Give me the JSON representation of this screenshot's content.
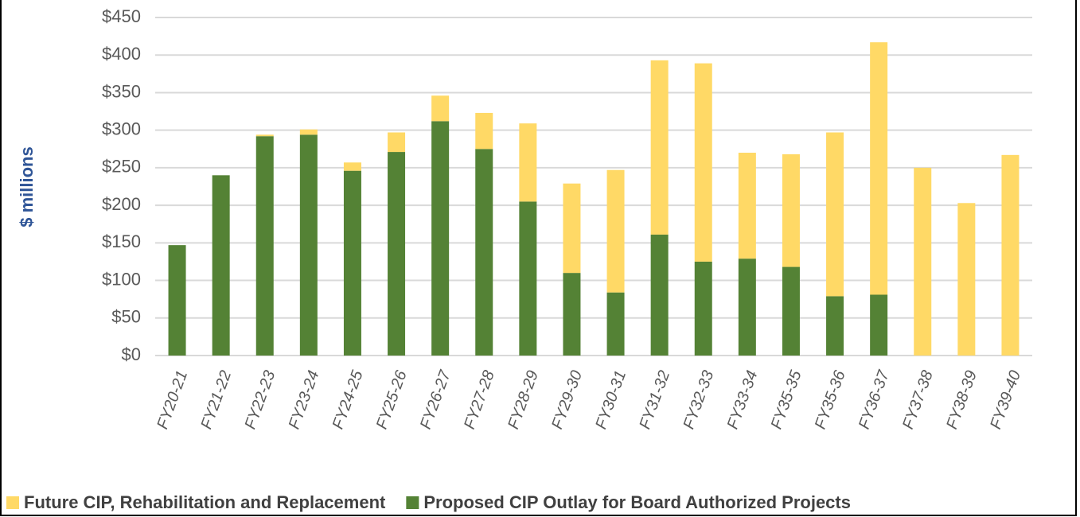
{
  "chart_data": {
    "type": "stacked_bar",
    "y_label": "$ millions",
    "categories": [
      "FY20-21",
      "FY21-22",
      "FY22-23",
      "FY23-24",
      "FY24-25",
      "FY25-26",
      "FY26-27",
      "FY27-28",
      "FY28-29",
      "FY29-30",
      "FY30-31",
      "FY31-32",
      "FY32-33",
      "FY33-34",
      "FY35-35",
      "FY35-36",
      "FY36-37",
      "FY37-38",
      "FY38-39",
      "FY39-40"
    ],
    "series": [
      {
        "name": "Future CIP, Rehabilitation and Replacement",
        "color": "#ffd966",
        "values": [
          0,
          0,
          2,
          7,
          11,
          26,
          34,
          48,
          104,
          119,
          163,
          232,
          264,
          141,
          150,
          218,
          336,
          250,
          203,
          267
        ]
      },
      {
        "name": "Proposed CIP Outlay for Board Authorized Projects",
        "color": "#548235",
        "values": [
          147,
          240,
          292,
          294,
          246,
          271,
          312,
          275,
          205,
          110,
          84,
          161,
          125,
          129,
          118,
          79,
          81,
          0,
          0,
          0
        ]
      }
    ],
    "ylim": [
      0,
      450
    ],
    "yticks": [
      {
        "value": 0,
        "label": "$0"
      },
      {
        "value": 50,
        "label": "$50"
      },
      {
        "value": 100,
        "label": "$100"
      },
      {
        "value": 150,
        "label": "$150"
      },
      {
        "value": 200,
        "label": "$200"
      },
      {
        "value": 250,
        "label": "$250"
      },
      {
        "value": 300,
        "label": "$300"
      },
      {
        "value": 350,
        "label": "$350"
      },
      {
        "value": 400,
        "label": "$400"
      },
      {
        "value": 450,
        "label": "$450"
      }
    ],
    "grid": true,
    "legend": "bottom"
  }
}
